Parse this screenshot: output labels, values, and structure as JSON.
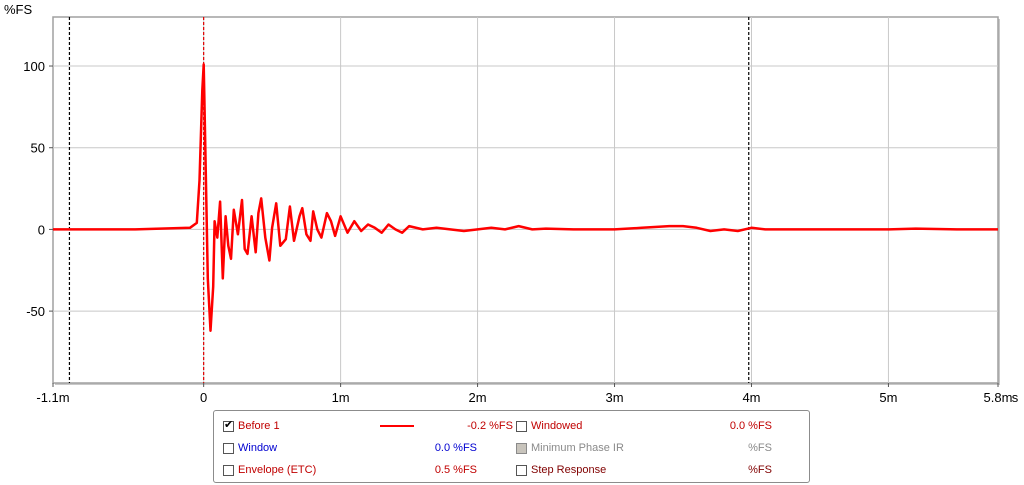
{
  "chart_data": {
    "type": "line",
    "ylabel": "%FS",
    "xlabel": "s",
    "xlim": [
      -0.0011,
      0.0058
    ],
    "ylim": [
      -94,
      130
    ],
    "x_ticks": [
      {
        "v": -0.0011,
        "label": "-1.1m"
      },
      {
        "v": 0,
        "label": "0"
      },
      {
        "v": 0.001,
        "label": "1m"
      },
      {
        "v": 0.002,
        "label": "2m"
      },
      {
        "v": 0.003,
        "label": "3m"
      },
      {
        "v": 0.004,
        "label": "4m"
      },
      {
        "v": 0.005,
        "label": "5m"
      },
      {
        "v": 0.0058,
        "label": "5.8m"
      }
    ],
    "y_ticks": [
      {
        "v": 100,
        "label": "100"
      },
      {
        "v": 50,
        "label": "50"
      },
      {
        "v": 0,
        "label": "0"
      },
      {
        "v": -50,
        "label": "-50"
      }
    ],
    "y_grid": [
      100,
      50,
      0,
      -50
    ],
    "markers": [
      {
        "x": -0.00098,
        "color": "#000000"
      },
      {
        "x": 0,
        "color": "#e00000"
      },
      {
        "x": 0.00398,
        "color": "#000000"
      }
    ],
    "grid": true,
    "series": [
      {
        "name": "Before 1",
        "color": "#ff0000",
        "x": [
          -0.0011,
          -0.0005,
          -0.0001,
          -5e-05,
          -3e-05,
          -1e-05,
          0,
          1e-05,
          3e-05,
          5e-05,
          7e-05,
          8e-05,
          0.0001,
          0.00012,
          0.00014,
          0.00016,
          0.00018,
          0.0002,
          0.00022,
          0.00025,
          0.00028,
          0.0003,
          0.00032,
          0.00035,
          0.00038,
          0.0004,
          0.00042,
          0.00045,
          0.00048,
          0.0005,
          0.00053,
          0.00056,
          0.0006,
          0.00063,
          0.00066,
          0.0007,
          0.00072,
          0.00075,
          0.00078,
          0.0008,
          0.00083,
          0.00086,
          0.0009,
          0.00093,
          0.00096,
          0.001,
          0.00105,
          0.0011,
          0.00115,
          0.0012,
          0.00125,
          0.0013,
          0.00135,
          0.0014,
          0.00145,
          0.0015,
          0.0016,
          0.0017,
          0.0018,
          0.0019,
          0.002,
          0.0021,
          0.0022,
          0.0023,
          0.0024,
          0.0025,
          0.0027,
          0.003,
          0.0032,
          0.0034,
          0.0035,
          0.0036,
          0.0037,
          0.0038,
          0.0039,
          0.004,
          0.0041,
          0.0045,
          0.005,
          0.0052,
          0.0055,
          0.0058
        ],
        "y": [
          0,
          0,
          1,
          4,
          30,
          85,
          101,
          60,
          -30,
          -62,
          -35,
          5,
          -5,
          17,
          -30,
          8,
          -10,
          -18,
          12,
          -3,
          18,
          -12,
          -15,
          8,
          -14,
          10,
          19,
          -5,
          -19,
          1,
          16,
          -10,
          -6,
          14,
          -7,
          8,
          13,
          -3,
          -7,
          11,
          0,
          -5,
          10,
          5,
          -4,
          8,
          -2,
          5,
          -1,
          3,
          1,
          -2,
          3,
          0,
          -2,
          2,
          0,
          1,
          0,
          -1,
          0,
          1,
          0,
          2,
          0,
          0.5,
          0,
          0,
          1,
          2,
          2,
          1,
          -1,
          0,
          -1,
          1,
          0,
          0,
          0,
          0.5,
          0,
          0
        ]
      }
    ]
  },
  "legend": {
    "rows": [
      {
        "label": "Before 1",
        "label_color": "#c00000",
        "checked": true,
        "disabled": false,
        "swatch_color": "#ff0000",
        "value": "-0.2 %FS",
        "value_color": "#c00000"
      },
      {
        "label": "Window",
        "label_color": "#0000d0",
        "checked": false,
        "disabled": false,
        "swatch_color": "",
        "value": "0.0 %FS",
        "value_color": "#0000d0"
      },
      {
        "label": "Envelope (ETC)",
        "label_color": "#c00000",
        "checked": false,
        "disabled": false,
        "swatch_color": "",
        "value": "0.5 %FS",
        "value_color": "#c00000"
      },
      {
        "label": "Windowed",
        "label_color": "#c00000",
        "checked": false,
        "disabled": false,
        "swatch_color": "",
        "value": "0.0 %FS",
        "value_color": "#c00000"
      },
      {
        "label": "Minimum Phase IR",
        "label_color": "#8a8a8a",
        "checked": false,
        "disabled": true,
        "swatch_color": "",
        "value": "%FS",
        "value_color": "#8a8a8a"
      },
      {
        "label": "Step Response",
        "label_color": "#800000",
        "checked": false,
        "disabled": false,
        "swatch_color": "",
        "value": "%FS",
        "value_color": "#800000"
      }
    ]
  }
}
